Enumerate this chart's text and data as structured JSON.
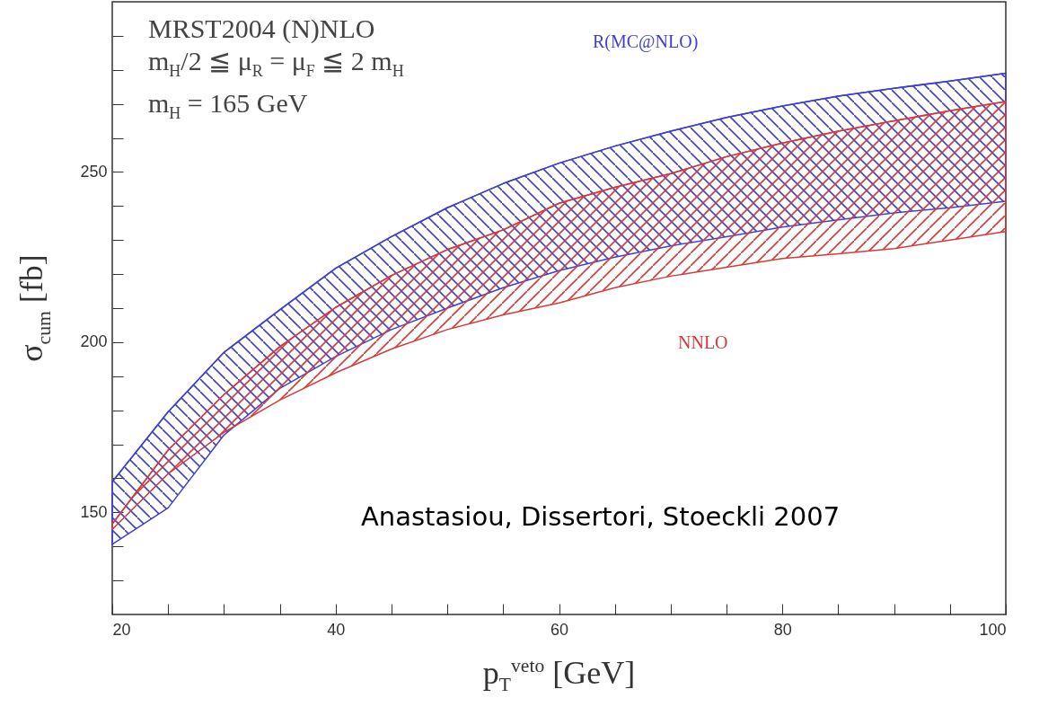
{
  "chart_data": {
    "type": "line",
    "annotations": [
      "MRST2004 (N)NLO",
      "m$_{H}$/2 ≦ μ$_{R}$ = μ$_{F}$ ≦ 2 m$_{H}$",
      "m$_{H}$ = 165 GeV",
      "Anastasiou, Dissertori, Stoeckli 2007"
    ],
    "xlabel": "p$_{T}$$^{veto}$  [GeV]",
    "ylabel": "σ$_{cum}$  [fb]",
    "x": [
      20,
      25,
      30,
      35,
      40,
      45,
      50,
      55,
      60,
      65,
      70,
      75,
      80,
      85,
      90,
      95,
      100
    ],
    "series": [
      {
        "name": "R(MC@NLO)",
        "color": "#4040d0",
        "values": [
          159,
          179.5,
          197,
          209.5,
          221.7,
          231,
          239.5,
          246.6,
          252.6,
          257.6,
          262,
          266,
          269.4,
          272.3,
          274.6,
          276.7,
          279
        ],
        "upper": [
          159,
          179.5,
          197,
          209.5,
          221.7,
          231,
          239.5,
          246.6,
          252.6,
          257.6,
          262,
          266,
          269.4,
          272.3,
          274.6,
          276.7,
          279
        ],
        "lower": [
          140.6,
          151.3,
          172.7,
          186.4,
          195.8,
          203.7,
          210,
          216,
          221,
          225,
          228.3,
          231,
          233.8,
          235.9,
          238,
          239.5,
          241.4
        ]
      },
      {
        "name": "NNLO",
        "color": "#d83a3a",
        "values": [
          146.6,
          168.3,
          184.6,
          198.7,
          210.2,
          219.6,
          227.2,
          233,
          240.8,
          245.5,
          249.5,
          254.5,
          258.5,
          262,
          265,
          268,
          270.7
        ],
        "upper": [
          146.6,
          168.3,
          184.6,
          198.7,
          210.2,
          219.6,
          227.2,
          233,
          240.8,
          245.5,
          249.5,
          254.5,
          258.5,
          262,
          265,
          268,
          270.7
        ],
        "lower": [
          145,
          161.3,
          173.5,
          183,
          191,
          198,
          203.7,
          208,
          211.5,
          216,
          219.4,
          222,
          224.6,
          226,
          227.5,
          230,
          232.5
        ]
      }
    ],
    "xlim": [
      20,
      100
    ],
    "xticks": [
      20,
      {
        "value": 25,
        "label": null
      },
      {
        "value": 30,
        "label": null
      },
      {
        "value": 35,
        "label": null
      },
      40,
      {
        "value": 45,
        "label": null
      },
      {
        "value": 50,
        "label": null
      },
      {
        "value": 55,
        "label": null
      },
      60,
      {
        "value": 65,
        "label": null
      },
      {
        "value": 70,
        "label": null
      },
      {
        "value": 75,
        "label": null
      },
      80,
      {
        "value": 85,
        "label": null
      },
      {
        "value": 90,
        "label": null
      },
      {
        "value": 95,
        "label": null
      },
      100
    ],
    "ylim": [
      120,
      300
    ],
    "yticks": [
      {
        "value": 130,
        "label": null
      },
      {
        "value": 140,
        "label": null
      },
      150,
      {
        "value": 160,
        "label": null
      },
      {
        "value": 170,
        "label": null
      },
      {
        "value": 180,
        "label": null
      },
      {
        "value": 190,
        "label": null
      },
      200,
      {
        "value": 210,
        "label": null
      },
      {
        "value": 220,
        "label": null
      },
      {
        "value": 230,
        "label": null
      },
      {
        "value": 240,
        "label": null
      },
      250,
      {
        "value": 260,
        "label": null
      },
      {
        "value": 270,
        "label": null
      },
      {
        "value": 280,
        "label": null
      },
      {
        "value": 290,
        "label": null
      }
    ],
    "grid": false
  }
}
